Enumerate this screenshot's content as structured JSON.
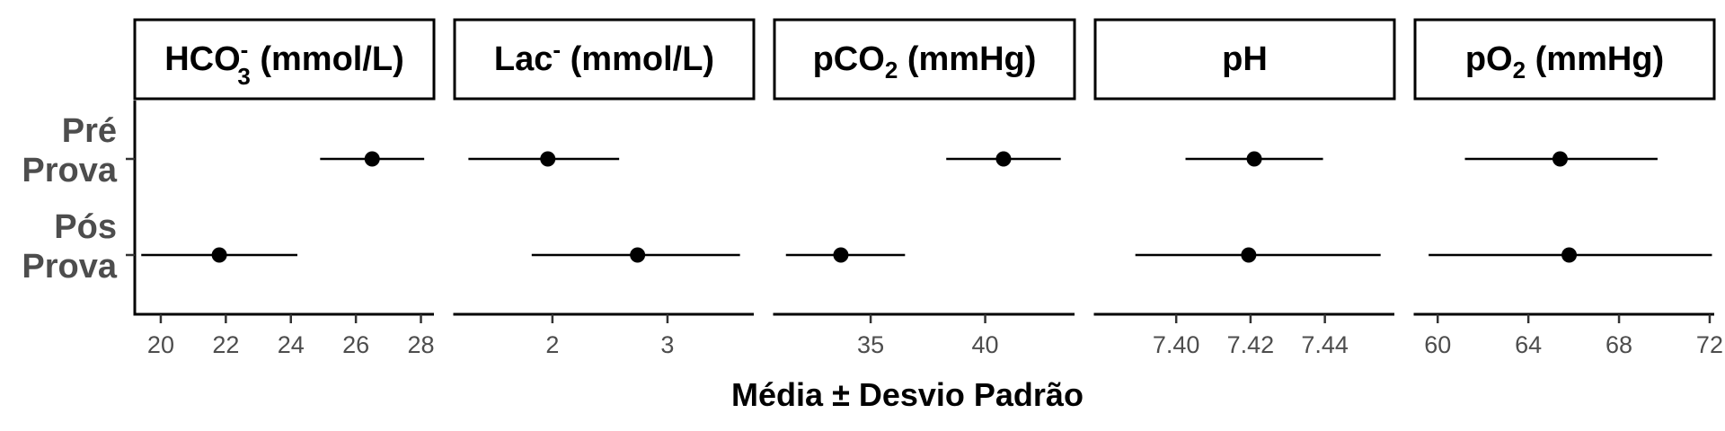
{
  "chart_data": {
    "type": "scatter",
    "description_type": "faceted point-range (mean ± SD)",
    "xlabel": "Média ± Desvio Padrão",
    "categories": [
      "Pré\nProva",
      "Pós\nProva"
    ],
    "legend": "none",
    "grid": false,
    "panels": [
      {
        "strip": {
          "main": "HCO",
          "sub": "3",
          "sup": "-",
          "rest": " (mmol/L)"
        },
        "xlim": [
          19.2,
          28.4
        ],
        "xticks": [
          20,
          22,
          24,
          26,
          28
        ],
        "xtick_labels": [
          "20",
          "22",
          "24",
          "26",
          "28"
        ],
        "points": [
          {
            "group": "Pré Prova",
            "mean": 26.5,
            "low": 24.9,
            "high": 28.1
          },
          {
            "group": "Pós Prova",
            "mean": 21.8,
            "low": 19.4,
            "high": 24.2
          }
        ]
      },
      {
        "strip": {
          "main": "Lac",
          "sub": "",
          "sup": "-",
          "rest": " (mmol/L)"
        },
        "xlim": [
          1.15,
          3.75
        ],
        "xticks": [
          2,
          3
        ],
        "xtick_labels": [
          "2",
          "3"
        ],
        "points": [
          {
            "group": "Pré Prova",
            "mean": 1.96,
            "low": 1.27,
            "high": 2.58
          },
          {
            "group": "Pós Prova",
            "mean": 2.74,
            "low": 1.82,
            "high": 3.63
          }
        ]
      },
      {
        "strip": {
          "main": "pCO",
          "sub": "2",
          "sup": "",
          "rest": " (mmHg)"
        },
        "xlim": [
          30.8,
          43.9
        ],
        "xticks": [
          35,
          40
        ],
        "xtick_labels": [
          "35",
          "40"
        ],
        "points": [
          {
            "group": "Pré Prova",
            "mean": 40.8,
            "low": 38.3,
            "high": 43.3
          },
          {
            "group": "Pós Prova",
            "mean": 33.7,
            "low": 31.3,
            "high": 36.5
          }
        ]
      },
      {
        "strip": {
          "main": "pH",
          "sub": "",
          "sup": "",
          "rest": ""
        },
        "xlim": [
          7.3782,
          7.4587
        ],
        "xticks": [
          7.4,
          7.42,
          7.44
        ],
        "xtick_labels": [
          "7.40",
          "7.42",
          "7.44"
        ],
        "points": [
          {
            "group": "Pré Prova",
            "mean": 7.421,
            "low": 7.4025,
            "high": 7.4395
          },
          {
            "group": "Pós Prova",
            "mean": 7.4195,
            "low": 7.389,
            "high": 7.455
          }
        ]
      },
      {
        "strip": {
          "main": "pO",
          "sub": "2",
          "sup": "",
          "rest": " (mmHg)"
        },
        "xlim": [
          59.0,
          72.2
        ],
        "xticks": [
          60,
          64,
          68,
          72
        ],
        "xtick_labels": [
          "60",
          "64",
          "68",
          "72"
        ],
        "points": [
          {
            "group": "Pré Prova",
            "mean": 65.4,
            "low": 61.2,
            "high": 69.7
          },
          {
            "group": "Pós Prova",
            "mean": 65.8,
            "low": 59.6,
            "high": 72.1
          }
        ]
      }
    ]
  }
}
